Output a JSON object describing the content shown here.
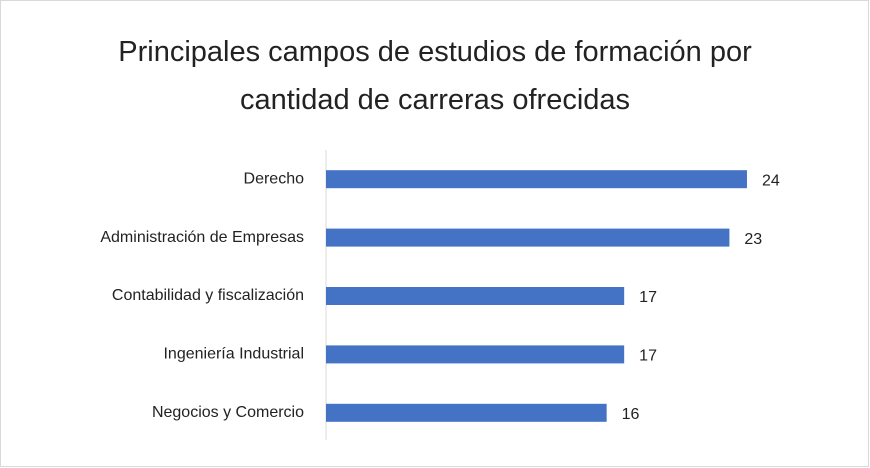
{
  "chart_data": {
    "type": "bar",
    "orientation": "horizontal",
    "title": "Principales campos de estudios de formación por cantidad de carreras ofrecidas",
    "categories": [
      "Derecho",
      "Administración de Empresas",
      "Contabilidad y fiscalización",
      "Ingeniería Industrial",
      "Negocios y Comercio"
    ],
    "values": [
      24,
      23,
      17,
      17,
      16
    ],
    "color": "#4472c4",
    "xlim": [
      0,
      25
    ]
  }
}
